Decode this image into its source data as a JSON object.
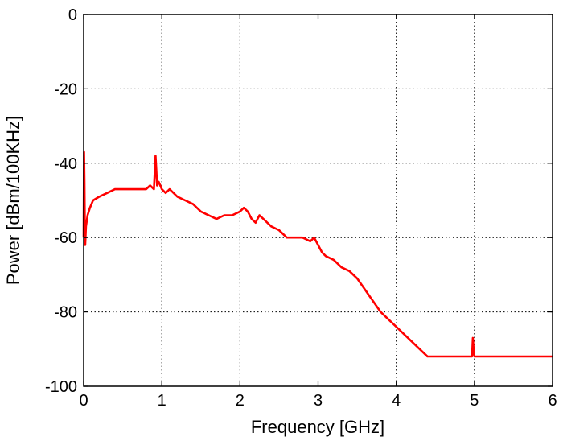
{
  "chart_data": {
    "type": "line",
    "title": "",
    "xlabel": "Frequency [GHz]",
    "ylabel": "Power [dBm/100KHz]",
    "xlim": [
      0,
      6
    ],
    "ylim": [
      -100,
      0
    ],
    "xticks": [
      0,
      1,
      2,
      3,
      4,
      5,
      6
    ],
    "yticks": [
      0,
      -20,
      -40,
      -60,
      -80,
      -100
    ],
    "xtick_labels": [
      "0",
      "1",
      "2",
      "3",
      "4",
      "5",
      "6"
    ],
    "ytick_labels": [
      "0",
      "-20",
      "-40",
      "-60",
      "-80",
      "-100"
    ],
    "grid": true,
    "grid_style": "dotted",
    "series": [
      {
        "color": "#ff0000",
        "x": [
          0.0,
          0.005,
          0.01,
          0.015,
          0.02,
          0.03,
          0.05,
          0.08,
          0.12,
          0.2,
          0.3,
          0.4,
          0.5,
          0.6,
          0.7,
          0.8,
          0.85,
          0.9,
          0.92,
          0.93,
          0.94,
          0.96,
          1.0,
          1.05,
          1.1,
          1.2,
          1.3,
          1.4,
          1.5,
          1.6,
          1.7,
          1.8,
          1.9,
          2.0,
          2.05,
          2.1,
          2.15,
          2.2,
          2.25,
          2.3,
          2.4,
          2.5,
          2.6,
          2.7,
          2.8,
          2.9,
          2.95,
          3.0,
          3.05,
          3.1,
          3.2,
          3.3,
          3.4,
          3.5,
          3.6,
          3.7,
          3.8,
          3.9,
          4.0,
          4.1,
          4.2,
          4.3,
          4.4,
          4.5,
          4.6,
          4.7,
          4.8,
          4.9,
          4.97,
          4.98,
          4.99,
          5.0,
          5.02,
          5.1,
          5.2,
          5.3,
          5.4,
          5.5,
          5.6,
          5.7,
          5.8,
          5.9,
          6.0
        ],
        "y": [
          -60,
          -37,
          -45,
          -58,
          -62,
          -57,
          -54,
          -52,
          -50,
          -49,
          -48,
          -47,
          -47,
          -47,
          -47,
          -47,
          -46,
          -47,
          -38,
          -42,
          -46,
          -45,
          -47,
          -48,
          -47,
          -49,
          -50,
          -51,
          -53,
          -54,
          -55,
          -54,
          -54,
          -53,
          -52,
          -53,
          -55,
          -56,
          -54,
          -55,
          -57,
          -58,
          -60,
          -60,
          -60,
          -61,
          -60,
          -62,
          -64,
          -65,
          -66,
          -68,
          -69,
          -71,
          -74,
          -77,
          -80,
          -82,
          -84,
          -86,
          -88,
          -90,
          -92,
          -92,
          -92,
          -92,
          -92,
          -92,
          -92,
          -87,
          -90,
          -92,
          -92,
          -92,
          -92,
          -92,
          -92,
          -92,
          -92,
          -92,
          -92,
          -92,
          -92
        ]
      }
    ]
  }
}
